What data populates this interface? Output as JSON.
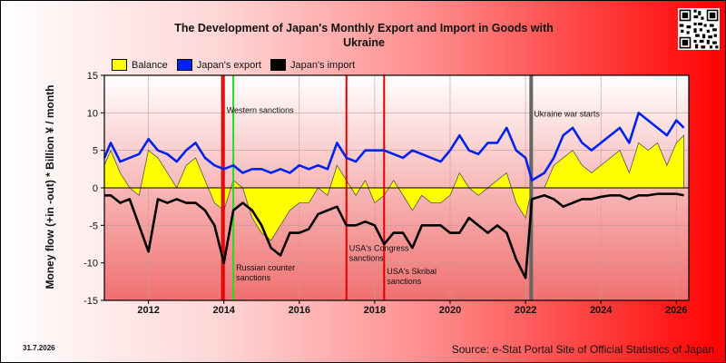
{
  "header": {
    "title_line1": "The Development of Japan's Monthly Export and Import in Goods with",
    "title_line2": "Ukraine"
  },
  "footer": {
    "date": "31.7.2026",
    "source": "Source: e-Stat Portal Site of Official Statistics of Japan"
  },
  "colors": {
    "balance": "#ffff00",
    "export": "#0022ee",
    "import": "#000000",
    "event_sanction": "#e00000",
    "event_russia": "#22dd22",
    "event_war": "#666666"
  },
  "chart_data": {
    "type": "line",
    "title": "The Development of Japan's Monthly Export and Import in Goods with Ukraine",
    "ylabel": "Money flow (+in -out) * Billion ¥ / month",
    "ylim": [
      -15,
      15
    ],
    "xlim": [
      2010.83,
      2026.33
    ],
    "yticks": [
      15,
      10,
      5,
      0,
      -5,
      -10,
      -15
    ],
    "xticks": [
      2012,
      2014,
      2016,
      2018,
      2020,
      2022,
      2024,
      2026
    ],
    "grid": true,
    "legend_position": "top-left",
    "series": [
      {
        "name": "Balance",
        "style": "area",
        "x": [
          2010.83,
          2011.0,
          2011.25,
          2011.5,
          2011.75,
          2012.0,
          2012.25,
          2012.5,
          2012.75,
          2013.0,
          2013.25,
          2013.5,
          2013.75,
          2014.0,
          2014.25,
          2014.5,
          2014.75,
          2015.0,
          2015.25,
          2015.5,
          2015.75,
          2016.0,
          2016.25,
          2016.5,
          2016.75,
          2017.0,
          2017.25,
          2017.5,
          2017.75,
          2018.0,
          2018.25,
          2018.5,
          2018.75,
          2019.0,
          2019.25,
          2019.5,
          2019.75,
          2020.0,
          2020.25,
          2020.5,
          2020.75,
          2021.0,
          2021.25,
          2021.5,
          2021.75,
          2022.0,
          2022.17,
          2022.5,
          2022.75,
          2023.0,
          2023.25,
          2023.5,
          2023.75,
          2024.0,
          2024.25,
          2024.5,
          2024.75,
          2025.0,
          2025.25,
          2025.5,
          2025.75,
          2026.0,
          2026.2
        ],
        "values": [
          3,
          5,
          2,
          0,
          -1,
          5,
          4,
          2,
          0,
          3,
          4,
          1,
          -2,
          -3,
          1,
          0,
          -4,
          -6,
          -7,
          -5,
          -3,
          -2,
          -2,
          0,
          -1,
          3,
          1,
          -1,
          1,
          -2,
          -1,
          1,
          -1,
          -3,
          -1,
          -2,
          -2,
          -1,
          2,
          0,
          -1,
          0,
          1,
          2,
          -2,
          -4,
          0,
          0,
          3,
          4,
          5,
          3,
          2,
          3,
          4,
          5,
          2,
          6,
          5,
          6,
          3,
          6,
          7
        ]
      },
      {
        "name": "Japan's export",
        "style": "line",
        "x": [
          2010.83,
          2011.0,
          2011.25,
          2011.5,
          2011.75,
          2012.0,
          2012.25,
          2012.5,
          2012.75,
          2013.0,
          2013.25,
          2013.5,
          2013.75,
          2014.0,
          2014.25,
          2014.5,
          2014.75,
          2015.0,
          2015.25,
          2015.5,
          2015.75,
          2016.0,
          2016.25,
          2016.5,
          2016.75,
          2017.0,
          2017.25,
          2017.5,
          2017.75,
          2018.0,
          2018.25,
          2018.5,
          2018.75,
          2019.0,
          2019.25,
          2019.5,
          2019.75,
          2020.0,
          2020.25,
          2020.5,
          2020.75,
          2021.0,
          2021.25,
          2021.5,
          2021.75,
          2022.0,
          2022.17,
          2022.5,
          2022.75,
          2023.0,
          2023.25,
          2023.5,
          2023.75,
          2024.0,
          2024.25,
          2024.5,
          2024.75,
          2025.0,
          2025.25,
          2025.5,
          2025.75,
          2026.0,
          2026.2
        ],
        "values": [
          4,
          6,
          3.5,
          4,
          4.5,
          6.5,
          5,
          4.5,
          3.5,
          5,
          6,
          4,
          3,
          2.5,
          3,
          2,
          2.5,
          2.5,
          2,
          2.5,
          2,
          3,
          2.5,
          3,
          2.5,
          6,
          4,
          3.5,
          5,
          5,
          5,
          4.5,
          4,
          5,
          4.5,
          4,
          3.5,
          5,
          7,
          5,
          4.5,
          6,
          6,
          8,
          5,
          4,
          1,
          2,
          4,
          7,
          8,
          6,
          5,
          6,
          7,
          8,
          6,
          10,
          9,
          8,
          7,
          9,
          8
        ]
      },
      {
        "name": "Japan's import",
        "style": "line",
        "x": [
          2010.83,
          2011.0,
          2011.25,
          2011.5,
          2011.75,
          2012.0,
          2012.25,
          2012.5,
          2012.75,
          2013.0,
          2013.25,
          2013.5,
          2013.75,
          2014.0,
          2014.25,
          2014.5,
          2014.75,
          2015.0,
          2015.25,
          2015.5,
          2015.75,
          2016.0,
          2016.25,
          2016.5,
          2016.75,
          2017.0,
          2017.25,
          2017.5,
          2017.75,
          2018.0,
          2018.25,
          2018.5,
          2018.75,
          2019.0,
          2019.25,
          2019.5,
          2019.75,
          2020.0,
          2020.25,
          2020.5,
          2020.75,
          2021.0,
          2021.25,
          2021.5,
          2021.75,
          2022.0,
          2022.17,
          2022.5,
          2022.75,
          2023.0,
          2023.25,
          2023.5,
          2023.75,
          2024.0,
          2024.25,
          2024.5,
          2024.75,
          2025.0,
          2025.25,
          2025.5,
          2025.75,
          2026.0,
          2026.2
        ],
        "values": [
          -1,
          -1,
          -2,
          -1.5,
          -5,
          -8.5,
          -1.5,
          -2,
          -1.5,
          -2,
          -2,
          -3,
          -5,
          -10,
          -3,
          -2,
          -3,
          -5,
          -8,
          -9,
          -6,
          -6,
          -5.5,
          -3.5,
          -3,
          -2.5,
          -5,
          -5,
          -4.5,
          -5,
          -7.5,
          -6,
          -6,
          -8,
          -5,
          -5,
          -5,
          -6,
          -6,
          -4,
          -5,
          -6,
          -5,
          -6,
          -9.5,
          -12,
          -1.5,
          -1,
          -1.5,
          -2.5,
          -2,
          -1.5,
          -1.5,
          -1.2,
          -1,
          -1,
          -1.5,
          -1,
          -1,
          -0.8,
          -0.8,
          -0.8,
          -1
        ]
      }
    ],
    "events": [
      {
        "x": 2013.95,
        "color_key": "event_sanction",
        "label1": "",
        "label2": ""
      },
      {
        "x": 2014.25,
        "color_key": "event_russia",
        "label1": "Russian counter",
        "label2": "sanctions"
      },
      {
        "x": 2014.0,
        "color_key": "event_sanction",
        "label1": "Western sanctions",
        "label2": "",
        "label_y": 10
      },
      {
        "x": 2017.25,
        "color_key": "event_sanction",
        "label1": "USA's Congress",
        "label2": "sanctions"
      },
      {
        "x": 2018.25,
        "color_key": "event_sanction",
        "label1": "USA's Skribal",
        "label2": "sanctions"
      },
      {
        "x": 2022.15,
        "color_key": "event_war",
        "label1": "Ukraine war starts",
        "label2": "",
        "label_y": 9.5
      }
    ],
    "legend": [
      "Balance",
      "Japan's export",
      "Japan's import"
    ]
  }
}
